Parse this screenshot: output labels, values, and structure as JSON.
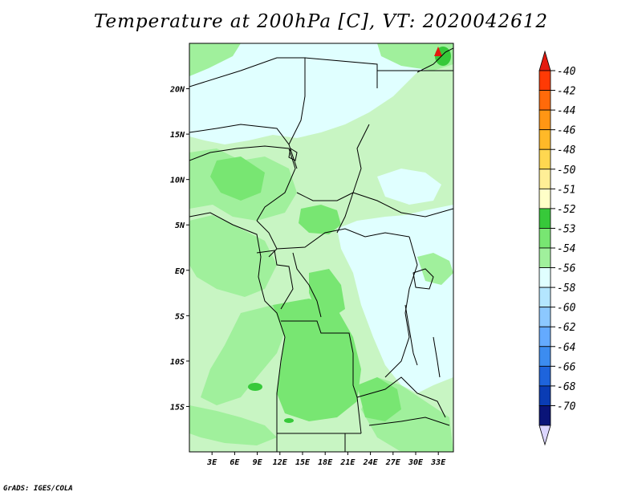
{
  "title": "Temperature at 200hPa [C], VT: 2020042612",
  "credit": "GrADS: IGES/COLA",
  "map": {
    "lon_range": [
      0,
      35
    ],
    "lat_range": [
      -20,
      25
    ],
    "lat_ticks": [
      {
        "lat": 20,
        "label": "20N"
      },
      {
        "lat": 15,
        "label": "15N"
      },
      {
        "lat": 10,
        "label": "10N"
      },
      {
        "lat": 5,
        "label": "5N"
      },
      {
        "lat": 0,
        "label": "EQ"
      },
      {
        "lat": -5,
        "label": "5S"
      },
      {
        "lat": -10,
        "label": "10S"
      },
      {
        "lat": -15,
        "label": "15S"
      }
    ],
    "lon_ticks": [
      {
        "lon": 3,
        "label": "3E"
      },
      {
        "lon": 6,
        "label": "6E"
      },
      {
        "lon": 9,
        "label": "9E"
      },
      {
        "lon": 12,
        "label": "12E"
      },
      {
        "lon": 15,
        "label": "15E"
      },
      {
        "lon": 18,
        "label": "18E"
      },
      {
        "lon": 21,
        "label": "21E"
      },
      {
        "lon": 24,
        "label": "24E"
      },
      {
        "lon": 27,
        "label": "27E"
      },
      {
        "lon": 30,
        "label": "30E"
      },
      {
        "lon": 33,
        "label": "33E"
      }
    ],
    "field_colors": {
      "light_cyan": "#e0ffff",
      "pale_green": "#c8f5c3",
      "light_green": "#a0f09c",
      "mid_green": "#78e672",
      "dark_green": "#37c93a",
      "red": "#e41a0f"
    }
  },
  "colorbar": {
    "upper_arrow_color": "#e41a0f",
    "lower_arrow_color": "#dcd6ff",
    "bins": [
      {
        "color": "#ff3a05",
        "label": "-40"
      },
      {
        "color": "#ff6a0a",
        "label": "-42"
      },
      {
        "color": "#ff9614",
        "label": "-44"
      },
      {
        "color": "#ffb928",
        "label": "-46"
      },
      {
        "color": "#ffd750",
        "label": "-48"
      },
      {
        "color": "#ffee96",
        "label": "-50"
      },
      {
        "color": "#ffffc8",
        "label": "-51"
      },
      {
        "color": "#37c93a",
        "label": "-52"
      },
      {
        "color": "#78e672",
        "label": "-53"
      },
      {
        "color": "#a0f09c",
        "label": "-54"
      },
      {
        "color": "#e0ffff",
        "label": "-56"
      },
      {
        "color": "#b4e6ff",
        "label": "-58"
      },
      {
        "color": "#8cc8ff",
        "label": "-60"
      },
      {
        "color": "#64aaff",
        "label": "-62"
      },
      {
        "color": "#3c8cf0",
        "label": "-64"
      },
      {
        "color": "#1e64dc",
        "label": "-66"
      },
      {
        "color": "#0a3cb4",
        "label": "-68"
      },
      {
        "color": "#0a1478",
        "label": "-70"
      }
    ]
  }
}
